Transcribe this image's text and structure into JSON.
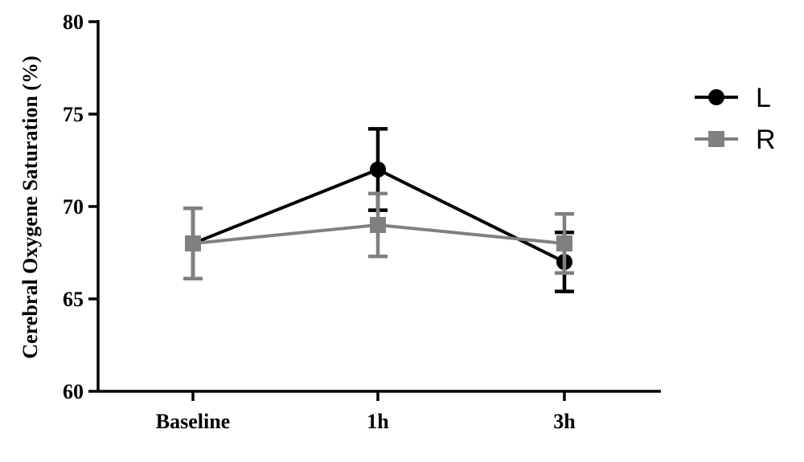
{
  "chart_data": {
    "type": "line",
    "title": "",
    "xlabel": "",
    "ylabel": "Cerebral Oxygene Saturation (%)",
    "categories": [
      "Baseline",
      "1h",
      "3h"
    ],
    "ylim": [
      60,
      80
    ],
    "yticks": [
      60,
      65,
      70,
      75,
      80
    ],
    "grid": false,
    "legend_position": "top-right",
    "series": [
      {
        "name": "L",
        "color": "#000000",
        "marker": "circle",
        "values": [
          68,
          72,
          67
        ],
        "error": [
          1.9,
          2.2,
          1.6
        ]
      },
      {
        "name": "R",
        "color": "#808080",
        "marker": "square",
        "values": [
          68,
          69,
          68
        ],
        "error": [
          1.9,
          1.7,
          1.6
        ]
      }
    ]
  }
}
